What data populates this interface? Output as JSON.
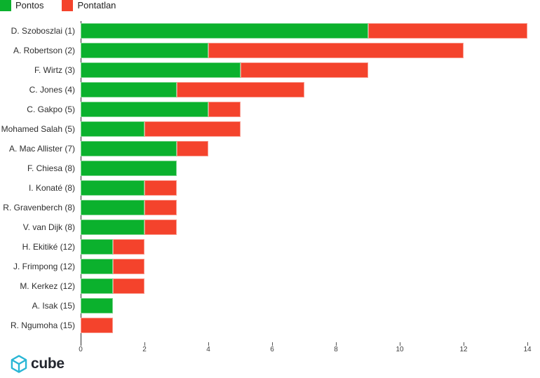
{
  "legend": {
    "items": [
      {
        "label": "Pontos",
        "color": "#0bb12d"
      },
      {
        "label": "Pontatlan",
        "color": "#f4432c"
      }
    ]
  },
  "chart_data": {
    "type": "bar",
    "orientation": "horizontal",
    "stacked": true,
    "title": "",
    "xlabel": "",
    "ylabel": "",
    "xlim": [
      0,
      14
    ],
    "xticks": [
      0,
      2,
      4,
      6,
      8,
      10,
      12,
      14
    ],
    "grid": false,
    "legend_position": "top-left",
    "categories": [
      "D. Szoboszlai (1)",
      "A. Robertson (2)",
      "F. Wirtz (3)",
      "C. Jones (4)",
      "C. Gakpo (5)",
      "Mohamed Salah (5)",
      "A. Mac Allister (7)",
      "F. Chiesa (8)",
      "I. Konaté (8)",
      "R. Gravenberch (8)",
      "V. van Dijk (8)",
      "H. Ekitiké (12)",
      "J. Frimpong (12)",
      "M. Kerkez (12)",
      "A. Isak (15)",
      "R. Ngumoha (15)"
    ],
    "series": [
      {
        "name": "Pontos",
        "color": "#0bb12d",
        "values": [
          9,
          4,
          5,
          3,
          4,
          2,
          3,
          3,
          2,
          2,
          2,
          1,
          1,
          1,
          1,
          0
        ]
      },
      {
        "name": "Pontatlan",
        "color": "#f4432c",
        "values": [
          5,
          8,
          4,
          4,
          1,
          3,
          1,
          0,
          1,
          1,
          1,
          1,
          1,
          1,
          0,
          1
        ]
      }
    ],
    "totals": [
      14,
      12,
      9,
      7,
      5,
      5,
      4,
      3,
      3,
      3,
      3,
      2,
      2,
      2,
      1,
      1
    ]
  },
  "footer": {
    "logo_text": "cube",
    "logo_color": "#29b6d5"
  }
}
